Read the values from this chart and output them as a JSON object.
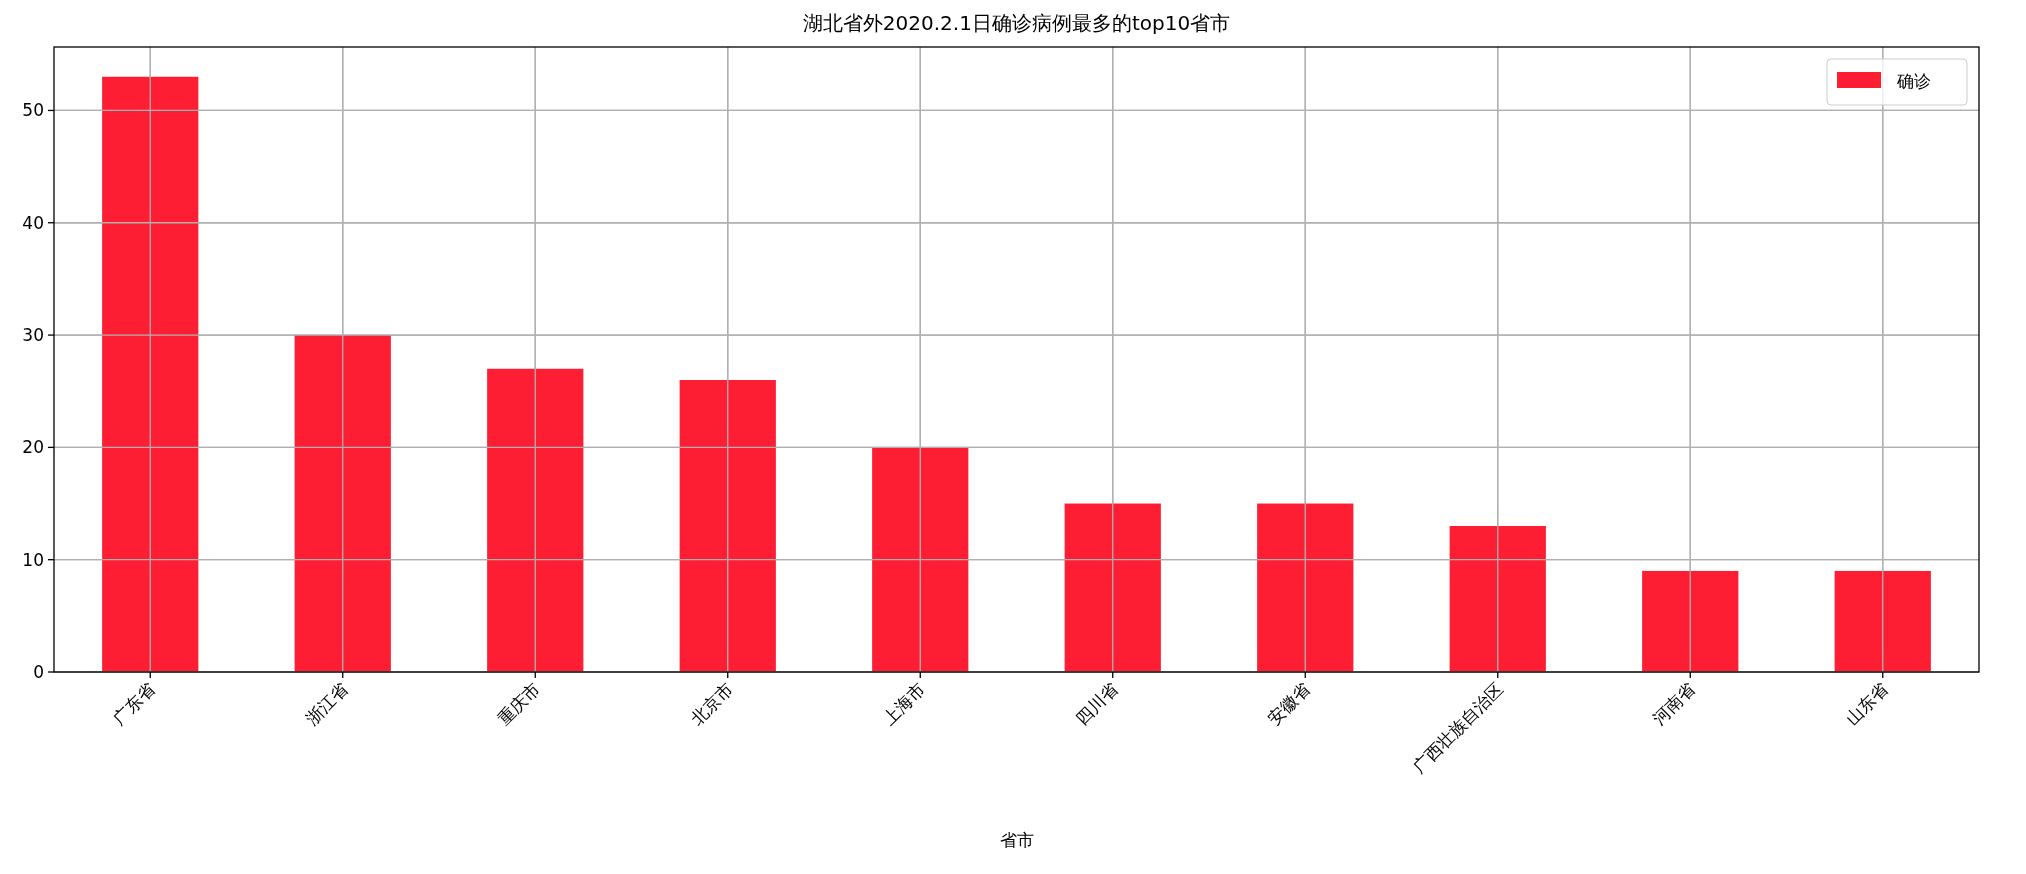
{
  "chart_data": {
    "type": "bar",
    "title": "湖北省外2020.2.1日确诊病例最多的top10省市",
    "xlabel": "省市",
    "categories": [
      "广东省",
      "浙江省",
      "重庆市",
      "北京市",
      "上海市",
      "四川省",
      "安徽省",
      "广西壮族自治区",
      "河南省",
      "山东省"
    ],
    "series": [
      {
        "name": "确诊",
        "color": "#fe1e33",
        "values": [
          53,
          30,
          27,
          26,
          20,
          15,
          15,
          13,
          9,
          9
        ]
      }
    ],
    "ylim": [
      0,
      55.65
    ],
    "yticks": [
      0,
      10,
      20,
      30,
      40,
      50
    ],
    "grid": true,
    "legend": "top right"
  }
}
